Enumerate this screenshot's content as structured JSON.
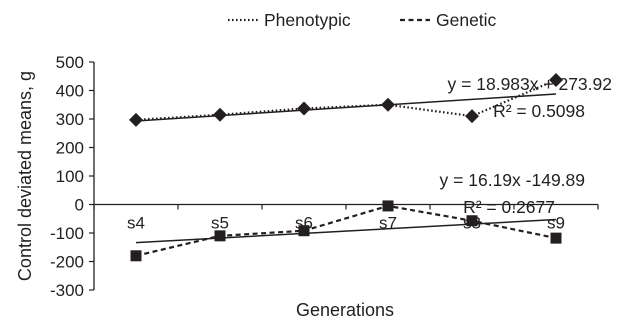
{
  "chart_data": {
    "type": "line",
    "categories": [
      "s4",
      "s5",
      "s6",
      "s7",
      "s8",
      "s9"
    ],
    "xlabel": "Generations",
    "ylabel": "Control deviated  means, g",
    "ylim": [
      -300,
      500
    ],
    "yticks": [
      500,
      400,
      300,
      200,
      100,
      0,
      -100,
      -200,
      -300
    ],
    "grid": false,
    "legend_position": "top-center",
    "series": [
      {
        "name": "Phenotypic",
        "values": [
          297,
          315,
          337,
          350,
          310,
          437
        ],
        "line_style": "dotted",
        "marker": "diamond",
        "color": "#231f20",
        "trendline": {
          "slope": 18.983,
          "intercept": 273.92,
          "equation": "y = 18.983x + 273.92",
          "r2": "R² = 0.5098"
        }
      },
      {
        "name": "Genetic",
        "values": [
          -180,
          -110,
          -92,
          -5,
          -57,
          -118
        ],
        "line_style": "dashed",
        "marker": "square",
        "color": "#231f20",
        "trendline": {
          "slope": 16.19,
          "intercept": -149.89,
          "equation": "y = 16.19x -149.89",
          "r2": "R² = 0.2677"
        }
      }
    ]
  }
}
